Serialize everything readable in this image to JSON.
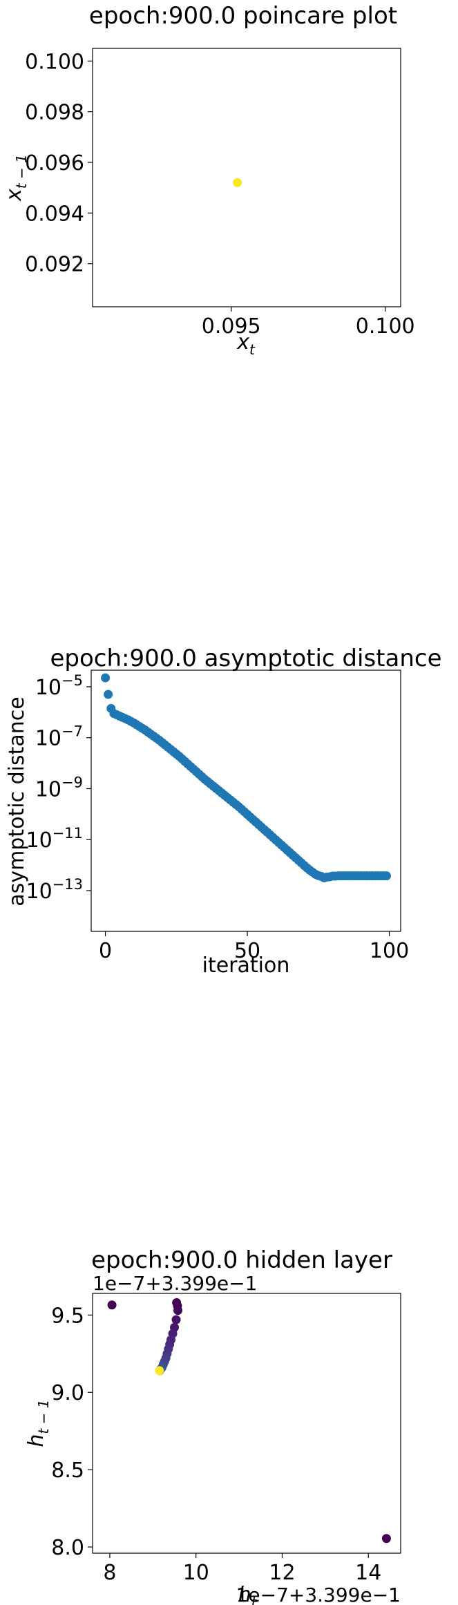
{
  "chart_data": [
    {
      "type": "scatter",
      "title": "epoch:900.0 poincare plot",
      "xlabel": "x_t",
      "ylabel": "x_{t-1}",
      "xlim": [
        0.0905,
        0.1005
      ],
      "ylim": [
        0.0903,
        0.1005
      ],
      "xticks": [
        "0.095",
        "0.100"
      ],
      "xtick_values": [
        0.095,
        0.1
      ],
      "yticks": [
        "0.092",
        "0.094",
        "0.096",
        "0.098",
        "0.100"
      ],
      "ytick_values": [
        0.092,
        0.094,
        0.096,
        0.098,
        0.1
      ],
      "points": [
        {
          "x": 0.0952,
          "y": 0.0952,
          "color": "#fde725"
        }
      ]
    },
    {
      "type": "scatter",
      "title": "epoch:900.0 asymptotic distance",
      "xlabel": "iteration",
      "ylabel": "asymptotic distance",
      "y_scale": "log",
      "xlim": [
        -5,
        104
      ],
      "ylim_log10": [
        -14.6,
        -4.35
      ],
      "xticks": [
        "0",
        "50",
        "100"
      ],
      "xtick_values": [
        0,
        50,
        100
      ],
      "yticks": [
        "10",
        "10",
        "10",
        "10",
        "10"
      ],
      "ytick_exponents": [
        "−5",
        "−7",
        "−9",
        "−11",
        "−13"
      ],
      "ytick_values_log10": [
        -5,
        -7,
        -9,
        -11,
        -13
      ],
      "color": "#1f77b4",
      "series_log10": [
        -4.65,
        -5.3,
        -5.85,
        -6.05,
        -6.1,
        -6.15,
        -6.2,
        -6.25,
        -6.3,
        -6.36,
        -6.42,
        -6.49,
        -6.56,
        -6.63,
        -6.7,
        -6.78,
        -6.86,
        -6.94,
        -7.02,
        -7.1,
        -7.19,
        -7.28,
        -7.37,
        -7.46,
        -7.55,
        -7.64,
        -7.73,
        -7.83,
        -7.93,
        -8.03,
        -8.13,
        -8.23,
        -8.33,
        -8.43,
        -8.53,
        -8.63,
        -8.72,
        -8.81,
        -8.9,
        -8.99,
        -9.08,
        -9.17,
        -9.26,
        -9.35,
        -9.44,
        -9.53,
        -9.62,
        -9.71,
        -9.81,
        -9.91,
        -10.01,
        -10.11,
        -10.21,
        -10.31,
        -10.41,
        -10.51,
        -10.61,
        -10.71,
        -10.81,
        -10.91,
        -11.01,
        -11.11,
        -11.21,
        -11.31,
        -11.41,
        -11.51,
        -11.61,
        -11.71,
        -11.81,
        -11.91,
        -12.01,
        -12.11,
        -12.2,
        -12.28,
        -12.36,
        -12.41,
        -12.44,
        -12.5,
        -12.47,
        -12.46,
        -12.43,
        -12.43,
        -12.42,
        -12.42,
        -12.42,
        -12.42,
        -12.42,
        -12.42,
        -12.42,
        -12.42,
        -12.42,
        -12.42,
        -12.42,
        -12.42,
        -12.42,
        -12.42,
        -12.42,
        -12.42,
        -12.42,
        -12.42
      ]
    },
    {
      "type": "scatter",
      "title": "epoch:900.0 hidden layer",
      "xlabel": "h_t",
      "ylabel": "h_{t-1}",
      "x_offset_label": "1e−7+3.399e−1",
      "y_offset_label": "1e−7+3.399e−1",
      "xlim": [
        7.6,
        14.75
      ],
      "ylim": [
        7.96,
        9.64
      ],
      "xticks": [
        "8",
        "10",
        "12",
        "14"
      ],
      "xtick_values": [
        8,
        10,
        12,
        14
      ],
      "yticks": [
        "8.0",
        "8.5",
        "9.0",
        "9.5"
      ],
      "ytick_values": [
        8.0,
        8.5,
        9.0,
        9.5
      ],
      "points": [
        {
          "x": 8.05,
          "y": 9.565,
          "color": "#440154"
        },
        {
          "x": 14.42,
          "y": 8.055,
          "color": "#440154"
        },
        {
          "x": 9.55,
          "y": 9.58,
          "color": "#440154"
        },
        {
          "x": 9.57,
          "y": 9.56,
          "color": "#440154"
        },
        {
          "x": 9.58,
          "y": 9.53,
          "color": "#46075a"
        },
        {
          "x": 9.54,
          "y": 9.47,
          "color": "#471063"
        },
        {
          "x": 9.5,
          "y": 9.42,
          "color": "#47186a"
        },
        {
          "x": 9.46,
          "y": 9.38,
          "color": "#482071"
        },
        {
          "x": 9.42,
          "y": 9.34,
          "color": "#482576"
        },
        {
          "x": 9.39,
          "y": 9.31,
          "color": "#472b7a"
        },
        {
          "x": 9.36,
          "y": 9.28,
          "color": "#46307e"
        },
        {
          "x": 9.33,
          "y": 9.25,
          "color": "#453581"
        },
        {
          "x": 9.3,
          "y": 9.22,
          "color": "#433b83"
        },
        {
          "x": 9.27,
          "y": 9.2,
          "color": "#414287"
        },
        {
          "x": 9.24,
          "y": 9.18,
          "color": "#3e4989"
        },
        {
          "x": 9.21,
          "y": 9.16,
          "color": "#3a538b"
        },
        {
          "x": 9.18,
          "y": 9.15,
          "color": "#355f8d"
        },
        {
          "x": 9.16,
          "y": 9.14,
          "color": "#2a788e"
        },
        {
          "x": 9.15,
          "y": 9.14,
          "color": "#fde725"
        }
      ]
    }
  ]
}
